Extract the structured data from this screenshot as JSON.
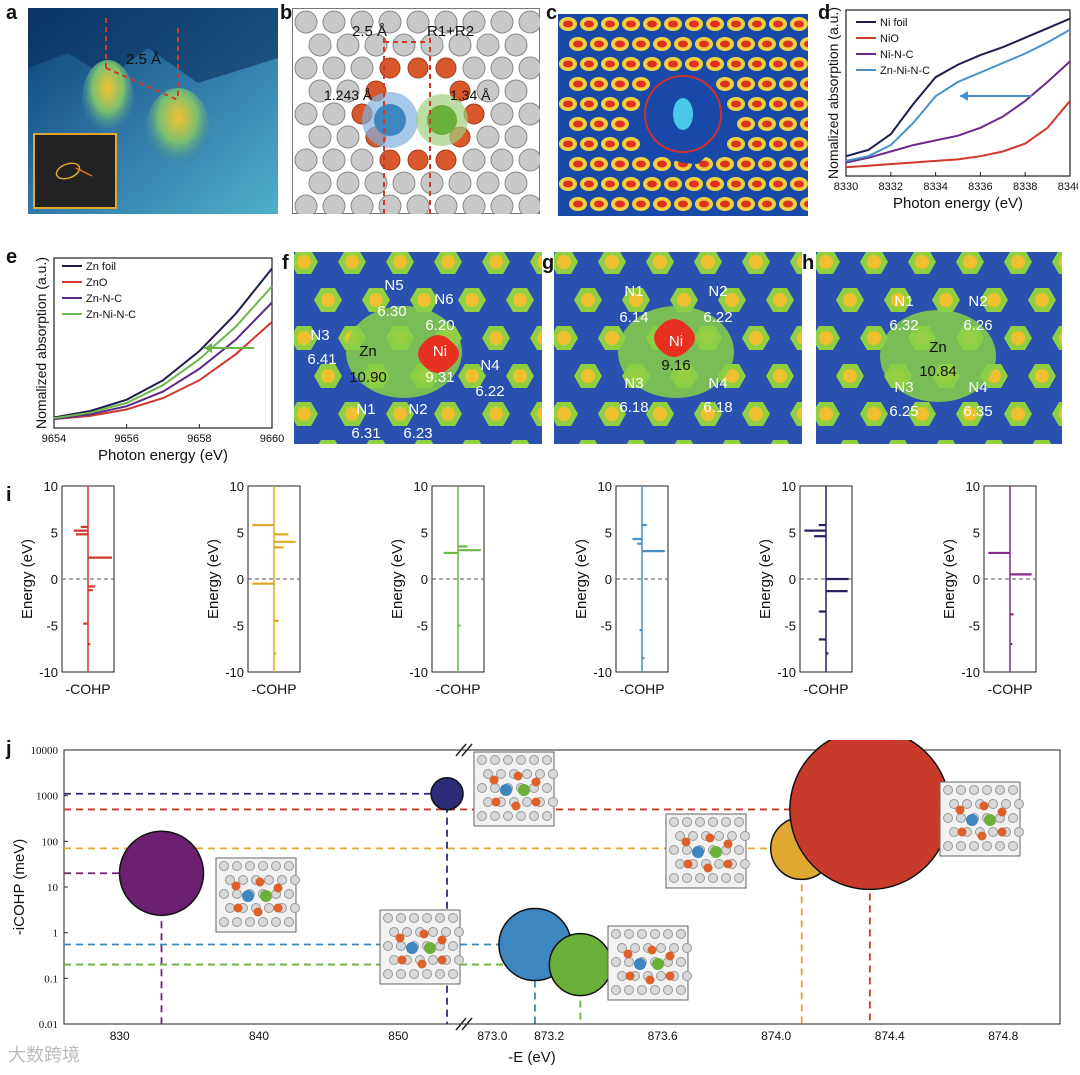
{
  "panel_labels": {
    "a": "a",
    "b": "b",
    "c": "c",
    "d": "d",
    "e": "e",
    "f": "f",
    "g": "g",
    "h": "h",
    "i": "i",
    "j": "j"
  },
  "panel_a": {
    "distance": "2.5 Å"
  },
  "panel_b": {
    "distance": "2.5 Å",
    "r_label": "R1+R2",
    "bond_left": "1.243 Å",
    "bond_right": "1.34 Å"
  },
  "colors": {
    "ni_foil": "#1f1f4f",
    "nio": "#d0382b",
    "ni_n_c": "#6a2a8a",
    "zn_ni_n_c": "#4a90c8",
    "zn_foil": "#1f1f4f",
    "zno": "#d0382b",
    "zn_n_c": "#5a2a8a",
    "zn_ni_n_c_e": "#6ab84a"
  },
  "panel_d": {
    "chart_data": {
      "type": "line",
      "title": "",
      "xlabel": "Photon energy (eV)",
      "ylabel": "Nomalized absorption (a.u.)",
      "xlim": [
        8330,
        8340
      ],
      "xticks": [
        "8330",
        "8332",
        "8334",
        "8336",
        "8338",
        "8340"
      ],
      "legend": [
        "Ni foil",
        "NiO",
        "Ni-N-C",
        "Zn-Ni-N-C"
      ],
      "series": [
        {
          "name": "Ni foil",
          "x": [
            8330,
            8331,
            8332,
            8333,
            8334,
            8335,
            8336,
            8337,
            8338,
            8339,
            8340
          ],
          "values": [
            0.1,
            0.14,
            0.24,
            0.43,
            0.6,
            0.68,
            0.74,
            0.79,
            0.85,
            0.91,
            0.97
          ]
        },
        {
          "name": "NiO",
          "x": [
            8330,
            8331,
            8332,
            8333,
            8334,
            8335,
            8336,
            8337,
            8338,
            8339,
            8340
          ],
          "values": [
            0.03,
            0.04,
            0.05,
            0.06,
            0.07,
            0.08,
            0.1,
            0.13,
            0.18,
            0.28,
            0.45
          ]
        },
        {
          "name": "Ni-N-C",
          "x": [
            8330,
            8331,
            8332,
            8333,
            8334,
            8335,
            8336,
            8337,
            8338,
            8339,
            8340
          ],
          "values": [
            0.06,
            0.09,
            0.13,
            0.17,
            0.2,
            0.23,
            0.28,
            0.35,
            0.45,
            0.57,
            0.7
          ]
        },
        {
          "name": "Zn-Ni-N-C",
          "x": [
            8330,
            8331,
            8332,
            8333,
            8334,
            8335,
            8336,
            8337,
            8338,
            8339,
            8340
          ],
          "values": [
            0.07,
            0.1,
            0.17,
            0.31,
            0.48,
            0.57,
            0.63,
            0.69,
            0.75,
            0.82,
            0.9
          ]
        }
      ]
    }
  },
  "panel_e": {
    "chart_data": {
      "type": "line",
      "title": "",
      "xlabel": "Photon energy (eV)",
      "ylabel": "Nomalized absorption (a.u.)",
      "xlim": [
        9654,
        9660
      ],
      "xticks": [
        "9654",
        "9656",
        "9658",
        "9660"
      ],
      "legend": [
        "Zn foil",
        "ZnO",
        "Zn-N-C",
        "Zn-Ni-N-C"
      ],
      "series": [
        {
          "name": "Zn foil",
          "x": [
            9654,
            9655,
            9656,
            9657,
            9658,
            9659,
            9660
          ],
          "values": [
            0.04,
            0.08,
            0.15,
            0.27,
            0.45,
            0.68,
            0.96
          ]
        },
        {
          "name": "ZnO",
          "x": [
            9654,
            9655,
            9656,
            9657,
            9658,
            9659,
            9660
          ],
          "values": [
            0.03,
            0.05,
            0.09,
            0.16,
            0.27,
            0.43,
            0.63
          ]
        },
        {
          "name": "Zn-N-C",
          "x": [
            9654,
            9655,
            9656,
            9657,
            9658,
            9659,
            9660
          ],
          "values": [
            0.03,
            0.06,
            0.11,
            0.2,
            0.34,
            0.52,
            0.75
          ]
        },
        {
          "name": "Zn-Ni-N-C",
          "x": [
            9654,
            9655,
            9656,
            9657,
            9658,
            9659,
            9660
          ],
          "values": [
            0.035,
            0.07,
            0.13,
            0.24,
            0.4,
            0.6,
            0.85
          ]
        }
      ]
    }
  },
  "panel_f": {
    "labels": [
      {
        "t": "N5"
      },
      {
        "t": "6.30"
      },
      {
        "t": "N6"
      },
      {
        "t": "6.20"
      },
      {
        "t": "N3"
      },
      {
        "t": "6.41"
      },
      {
        "t": "Zn"
      },
      {
        "t": "10.90"
      },
      {
        "t": "Ni"
      },
      {
        "t": "9.31"
      },
      {
        "t": "N4"
      },
      {
        "t": "6.22"
      },
      {
        "t": "N1"
      },
      {
        "t": "6.31"
      },
      {
        "t": "N2"
      },
      {
        "t": "6.23"
      }
    ]
  },
  "panel_g": {
    "labels": [
      {
        "t": "N1"
      },
      {
        "t": "6.14"
      },
      {
        "t": "N2"
      },
      {
        "t": "6.22"
      },
      {
        "t": "Ni"
      },
      {
        "t": "9.16"
      },
      {
        "t": "N3"
      },
      {
        "t": "6.18"
      },
      {
        "t": "N4"
      },
      {
        "t": "6.18"
      }
    ]
  },
  "panel_h": {
    "labels": [
      {
        "t": "N1"
      },
      {
        "t": "6.32"
      },
      {
        "t": "N2"
      },
      {
        "t": "6.26"
      },
      {
        "t": "Zn"
      },
      {
        "t": "10.84"
      },
      {
        "t": "N3"
      },
      {
        "t": "6.25"
      },
      {
        "t": "N4"
      },
      {
        "t": "6.35"
      }
    ]
  },
  "panel_i": {
    "ylabel": "Energy (eV)",
    "xlabel": "-COHP",
    "yticks": [
      "10",
      "5",
      "0",
      "-5",
      "-10"
    ],
    "ylim": [
      -10,
      10
    ],
    "plots": [
      {
        "color": "#d0382b",
        "spikes": [
          {
            "e": 5.2,
            "v": -0.6
          },
          {
            "e": 4.8,
            "v": -0.5
          },
          {
            "e": 5.6,
            "v": -0.3
          },
          {
            "e": 2.3,
            "v": 1.0
          },
          {
            "e": -0.8,
            "v": 0.3
          },
          {
            "e": -1.2,
            "v": 0.2
          },
          {
            "e": -4.8,
            "v": -0.2
          },
          {
            "e": -7.0,
            "v": 0.1
          }
        ]
      },
      {
        "color": "#e0a820",
        "spikes": [
          {
            "e": 5.8,
            "v": -0.9
          },
          {
            "e": 4.8,
            "v": 0.6
          },
          {
            "e": 4.0,
            "v": 0.9
          },
          {
            "e": 3.4,
            "v": 0.4
          },
          {
            "e": -0.5,
            "v": -0.9
          },
          {
            "e": -4.5,
            "v": 0.2
          },
          {
            "e": -8.0,
            "v": 0.1
          }
        ]
      },
      {
        "color": "#6ab84a",
        "spikes": [
          {
            "e": 3.5,
            "v": 0.4
          },
          {
            "e": 3.1,
            "v": 0.95
          },
          {
            "e": 2.8,
            "v": -0.6
          },
          {
            "e": -5.0,
            "v": 0.1
          }
        ]
      },
      {
        "color": "#4a90c8",
        "spikes": [
          {
            "e": 4.3,
            "v": -0.4
          },
          {
            "e": 3.8,
            "v": -0.2
          },
          {
            "e": 3.0,
            "v": 0.95
          },
          {
            "e": 5.8,
            "v": 0.2
          },
          {
            "e": -5.5,
            "v": -0.1
          },
          {
            "e": -8.5,
            "v": 0.1
          }
        ]
      },
      {
        "color": "#2b1f5f",
        "spikes": [
          {
            "e": 5.2,
            "v": -0.9
          },
          {
            "e": 4.6,
            "v": -0.5
          },
          {
            "e": 5.8,
            "v": -0.3
          },
          {
            "e": 0.0,
            "v": 0.95
          },
          {
            "e": -1.3,
            "v": 0.9
          },
          {
            "e": -3.5,
            "v": -0.3
          },
          {
            "e": -6.5,
            "v": -0.3
          },
          {
            "e": -8.0,
            "v": 0.1
          }
        ]
      },
      {
        "color": "#8a2a8a",
        "spikes": [
          {
            "e": 2.8,
            "v": -0.9
          },
          {
            "e": 0.5,
            "v": 0.9
          },
          {
            "e": -3.8,
            "v": 0.15
          },
          {
            "e": -7.0,
            "v": 0.1
          }
        ]
      }
    ]
  },
  "panel_j": {
    "chart_data": {
      "type": "scatter",
      "xlabel": "-E (eV)",
      "ylabel": "-iCOHP (meV)",
      "yticks": [
        "10000",
        "1000",
        "100",
        "10",
        "1",
        "0.1",
        "0.01"
      ],
      "xticks_left": [
        "830",
        "840",
        "850"
      ],
      "xticks_right": [
        "873.0",
        "873.2",
        "873.6",
        "874.0",
        "874.4",
        "874.8"
      ],
      "ylim": [
        0.01,
        10000
      ],
      "points": [
        {
          "x": 833.0,
          "y": 20,
          "color": "#6b2170",
          "r": 42
        },
        {
          "x": 853.5,
          "y": 1100,
          "color": "#2e2a7a",
          "r": 16
        },
        {
          "x": 873.15,
          "y": 0.55,
          "color": "#3d86c0",
          "r": 36
        },
        {
          "x": 873.31,
          "y": 0.2,
          "color": "#6ab03a",
          "r": 31
        },
        {
          "x": 874.09,
          "y": 70,
          "color": "#e0a830",
          "r": 31
        },
        {
          "x": 874.33,
          "y": 500,
          "color": "#c83a2a",
          "r": 80
        }
      ]
    }
  },
  "watermark": "大数跨境"
}
